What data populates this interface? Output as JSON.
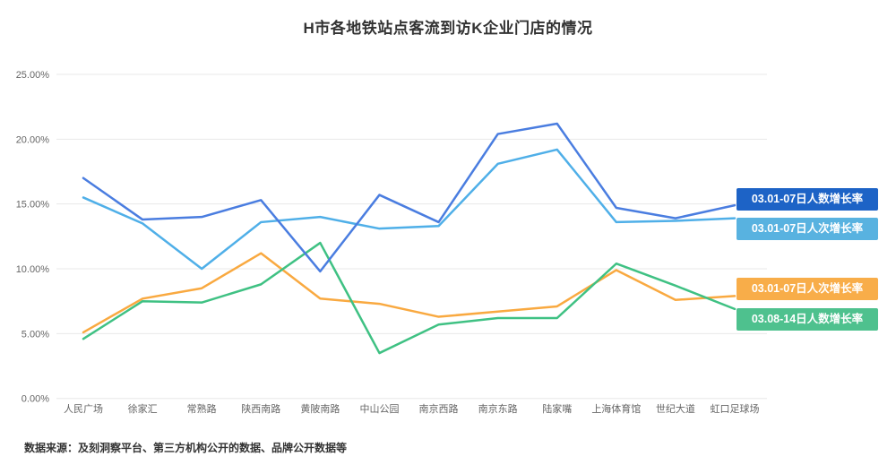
{
  "title": "H市各地铁站点客流到访K企业门店的情况",
  "footer": {
    "text": "数据来源：及刻洞察平台、第三方机构公开的数据、品牌公开数据等"
  },
  "chart_data": {
    "type": "line",
    "title": "H市各地铁站点客流到访K企业门店的情况",
    "categories": [
      "人民广场",
      "徐家汇",
      "常熟路",
      "陕西南路",
      "黄陂南路",
      "中山公园",
      "南京西路",
      "南京东路",
      "陆家嘴",
      "上海体育馆",
      "世纪大道",
      "虹口足球场"
    ],
    "xlabel": "",
    "ylabel": "",
    "y_axis": {
      "min": 0,
      "max": 25,
      "ticks": [
        "0.00%",
        "5.00%",
        "10.00%",
        "15.00%",
        "20.00%",
        "25.00%"
      ],
      "unit": "%"
    },
    "grid": true,
    "legend_position": "right-end-labels",
    "colors": {
      "grid": "#e8e8e8",
      "axis_text": "#666666"
    },
    "series": [
      {
        "name": "03.01-07日人数增长率",
        "color": "#4a7de0",
        "label_bg": "#1d63c6",
        "values": [
          17.0,
          13.8,
          14.0,
          15.3,
          9.8,
          15.7,
          13.6,
          20.4,
          21.2,
          14.7,
          13.9,
          14.9
        ]
      },
      {
        "name": "03.01-07日人次增长率",
        "color": "#4fafe8",
        "label_bg": "#58b2e0",
        "values": [
          15.5,
          13.5,
          10.0,
          13.6,
          14.0,
          13.1,
          13.3,
          18.1,
          19.2,
          13.6,
          13.7,
          13.9
        ]
      },
      {
        "name": "03.01-07日人次增长率",
        "color": "#f9a940",
        "label_bg": "#f8ad49",
        "values": [
          5.1,
          7.7,
          8.5,
          11.2,
          7.7,
          7.3,
          6.3,
          6.7,
          7.1,
          9.9,
          7.6,
          7.9
        ]
      },
      {
        "name": "03.08-14日人数增长率",
        "color": "#3fc183",
        "label_bg": "#4ec18e",
        "values": [
          4.6,
          7.5,
          7.4,
          8.8,
          12.0,
          3.5,
          5.7,
          6.2,
          6.2,
          10.4,
          8.7,
          6.9
        ]
      }
    ]
  }
}
